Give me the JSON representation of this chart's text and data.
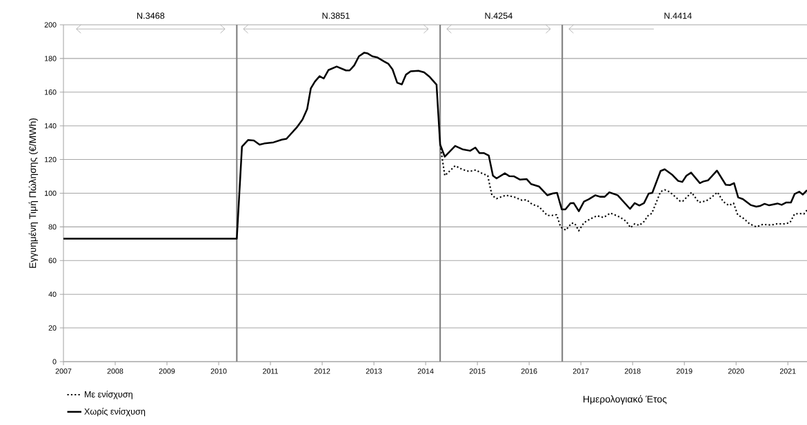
{
  "chart_data": {
    "type": "line",
    "ylabel": "Εγγυημένη Τιμή Πώλησης (€/MWh)",
    "xlabel": "Ημερολογιακό Έτος",
    "xlim": [
      2007,
      2021.37
    ],
    "ylim": [
      0,
      200
    ],
    "xticks": [
      2007,
      2008,
      2009,
      2010,
      2011,
      2012,
      2013,
      2014,
      2015,
      2016,
      2017,
      2018,
      2019,
      2020,
      2021
    ],
    "yticks": [
      0,
      20,
      40,
      60,
      80,
      100,
      120,
      140,
      160,
      180,
      200
    ],
    "grid": "y",
    "legend": "bottom left",
    "marker": "none",
    "ref_lines": [
      {
        "axis": "x",
        "value": 2010.35,
        "color": "#808080"
      },
      {
        "axis": "x",
        "value": 2014.28,
        "color": "#808080"
      },
      {
        "axis": "x",
        "value": 2016.64,
        "color": "#808080"
      }
    ],
    "annotations": [
      "N.3468",
      "N.3851",
      "N.4254",
      "N.4414"
    ],
    "series": [
      {
        "name": "Με ενίσχυση",
        "color": "#000000",
        "line_style": "dotted",
        "x": [
          2014.28,
          2014.37,
          2014.57,
          2014.71,
          2014.84,
          2014.97,
          2015.06,
          2015.2,
          2015.28,
          2015.37,
          2015.55,
          2015.71,
          2015.86,
          2015.95,
          2016.06,
          2016.19,
          2016.35,
          2016.44,
          2016.53,
          2016.61,
          2016.71,
          2016.82,
          2016.88,
          2016.96,
          2017.06,
          2017.17,
          2017.31,
          2017.44,
          2017.57,
          2017.75,
          2017.88,
          2017.96,
          2018.04,
          2018.13,
          2018.22,
          2018.31,
          2018.37,
          2018.54,
          2018.62,
          2018.71,
          2018.84,
          2018.92,
          2018.97,
          2019.14,
          2019.28,
          2019.42,
          2019.51,
          2019.64,
          2019.75,
          2019.86,
          2019.95,
          2020.03,
          2020.15,
          2020.26,
          2020.39,
          2020.52,
          2020.68,
          2020.79,
          2020.93,
          2021.04,
          2021.13,
          2021.24,
          2021.31,
          2021.37
        ],
        "values": [
          128.8,
          110.4,
          116.3,
          114.1,
          112.9,
          113.8,
          112.2,
          110.4,
          98.8,
          96.8,
          98.8,
          97.8,
          95.8,
          96.1,
          93.4,
          92,
          86.8,
          86.8,
          87.2,
          79.8,
          78.1,
          82.2,
          82.1,
          77.7,
          82.5,
          84.5,
          86.6,
          85.6,
          88.2,
          85.9,
          83.2,
          79.5,
          81.8,
          80.9,
          83.2,
          87.2,
          87.9,
          100.9,
          102,
          100.9,
          97.5,
          95.2,
          95.3,
          100.5,
          94.5,
          95.4,
          97.2,
          100.6,
          95,
          92.7,
          94.1,
          87.2,
          84.9,
          81.8,
          80,
          81.5,
          81.1,
          81.8,
          81.8,
          82.5,
          87.7,
          87.9,
          87.7,
          90
        ]
      },
      {
        "name": "Χωρίς ενίσχυση",
        "color": "#000000",
        "line_style": "solid",
        "x": [
          2007,
          2010.35,
          2010.45,
          2010.57,
          2010.68,
          2010.79,
          2010.88,
          2011.06,
          2011.22,
          2011.31,
          2011.51,
          2011.62,
          2011.71,
          2011.78,
          2011.86,
          2011.95,
          2012.03,
          2012.12,
          2012.28,
          2012.46,
          2012.53,
          2012.62,
          2012.71,
          2012.81,
          2012.88,
          2012.97,
          2013.06,
          2013.2,
          2013.28,
          2013.36,
          2013.45,
          2013.54,
          2013.62,
          2013.71,
          2013.86,
          2013.97,
          2014.08,
          2014.21,
          2014.28,
          2014.37,
          2014.57,
          2014.71,
          2014.86,
          2014.96,
          2015.04,
          2015.13,
          2015.22,
          2015.3,
          2015.37,
          2015.53,
          2015.62,
          2015.71,
          2015.82,
          2015.95,
          2016.04,
          2016.19,
          2016.35,
          2016.46,
          2016.54,
          2016.63,
          2016.7,
          2016.8,
          2016.86,
          2016.96,
          2017.06,
          2017.15,
          2017.28,
          2017.37,
          2017.46,
          2017.55,
          2017.71,
          2017.95,
          2018.04,
          2018.13,
          2018.22,
          2018.31,
          2018.38,
          2018.54,
          2018.62,
          2018.77,
          2018.88,
          2018.96,
          2019.04,
          2019.13,
          2019.3,
          2019.37,
          2019.46,
          2019.63,
          2019.8,
          2019.88,
          2019.96,
          2020.04,
          2020.13,
          2020.28,
          2020.39,
          2020.46,
          2020.55,
          2020.64,
          2020.8,
          2020.88,
          2020.97,
          2021.06,
          2021.13,
          2021.22,
          2021.29,
          2021.37
        ],
        "values": [
          73,
          73,
          127.7,
          131.6,
          131.3,
          128.8,
          129.5,
          130.2,
          131.8,
          132.3,
          139.1,
          143.8,
          150,
          162.2,
          166.3,
          169.5,
          168.1,
          173.1,
          175.2,
          172.9,
          172.9,
          175.9,
          181.3,
          183.4,
          183,
          181.3,
          180.7,
          178.2,
          176.8,
          173.5,
          165.6,
          164.6,
          170.4,
          172.4,
          172.7,
          171.8,
          169,
          164.5,
          128.8,
          121.7,
          128.1,
          126.1,
          125.2,
          127.1,
          123.8,
          123.8,
          122.3,
          110.4,
          108.8,
          111.8,
          110.1,
          110,
          108.1,
          108.4,
          105.4,
          104,
          98.8,
          99.9,
          100.2,
          90.4,
          90.4,
          94.1,
          94.2,
          89.3,
          95,
          96.4,
          98.8,
          97.9,
          97.9,
          100.5,
          98.8,
          90.7,
          94.1,
          92.7,
          94.1,
          99.8,
          100.2,
          113.2,
          114.2,
          110.8,
          107.3,
          106.7,
          110.4,
          112.2,
          106,
          107,
          107.7,
          113.4,
          105,
          104.8,
          106,
          97.5,
          96.5,
          93,
          92,
          92.4,
          93.7,
          92.8,
          93.9,
          93.1,
          94.5,
          94.5,
          99.5,
          100.9,
          99.2,
          101.8
        ]
      }
    ]
  }
}
